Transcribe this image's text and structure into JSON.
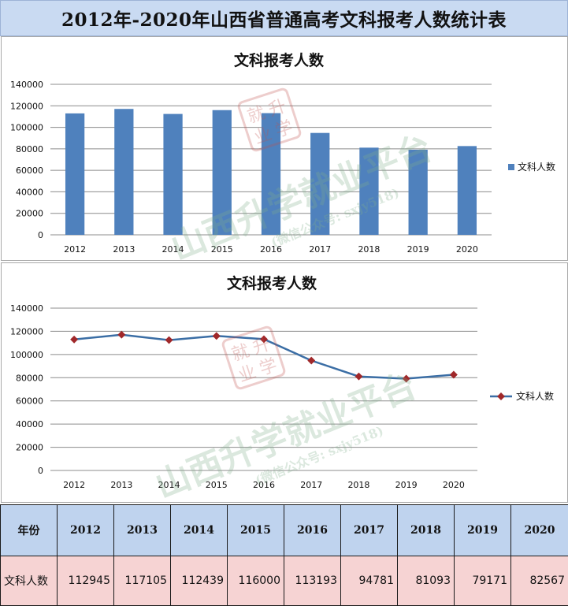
{
  "page_title": "2012年-2020年山西省普通高考文科报考人数统计表",
  "watermark": {
    "main": "山西升学就业平台",
    "sub": "(微信公众号: sxjy518)",
    "seal": [
      "就",
      "升",
      "业",
      "学"
    ]
  },
  "colors": {
    "bar": "#4f81bd",
    "line": "#3b6ea5",
    "marker": "#a0282a",
    "header_bg": "#c9daf2",
    "table_header_bg": "#bfd3ee",
    "table_value_bg": "#f6d3d3"
  },
  "chart_data": [
    {
      "type": "bar",
      "title": "文科报考人数",
      "categories": [
        "2012",
        "2013",
        "2014",
        "2015",
        "2016",
        "2017",
        "2018",
        "2019",
        "2020"
      ],
      "series": [
        {
          "name": "文科人数",
          "values": [
            112945,
            117105,
            112439,
            116000,
            113193,
            94781,
            81093,
            79171,
            82567
          ]
        }
      ],
      "yticks": [
        "0",
        "20000",
        "40000",
        "60000",
        "80000",
        "100000",
        "120000",
        "140000"
      ],
      "ylim": [
        0,
        140000
      ],
      "grid": true,
      "legend": "right"
    },
    {
      "type": "line",
      "title": "文科报考人数",
      "categories": [
        "2012",
        "2013",
        "2014",
        "2015",
        "2016",
        "2017",
        "2018",
        "2019",
        "2020"
      ],
      "series": [
        {
          "name": "文科人数",
          "values": [
            112945,
            117105,
            112439,
            116000,
            113193,
            94781,
            81093,
            79171,
            82567
          ]
        }
      ],
      "yticks": [
        "0",
        "20000",
        "40000",
        "60000",
        "80000",
        "100000",
        "120000",
        "140000"
      ],
      "ylim": [
        0,
        140000
      ],
      "grid": true,
      "legend": "right"
    }
  ],
  "table": {
    "header_label": "年份",
    "row_label": "文科人数",
    "years": [
      "2012",
      "2013",
      "2014",
      "2015",
      "2016",
      "2017",
      "2018",
      "2019",
      "2020"
    ],
    "values": [
      "112945",
      "117105",
      "112439",
      "116000",
      "113193",
      "94781",
      "81093",
      "79171",
      "82567"
    ]
  }
}
